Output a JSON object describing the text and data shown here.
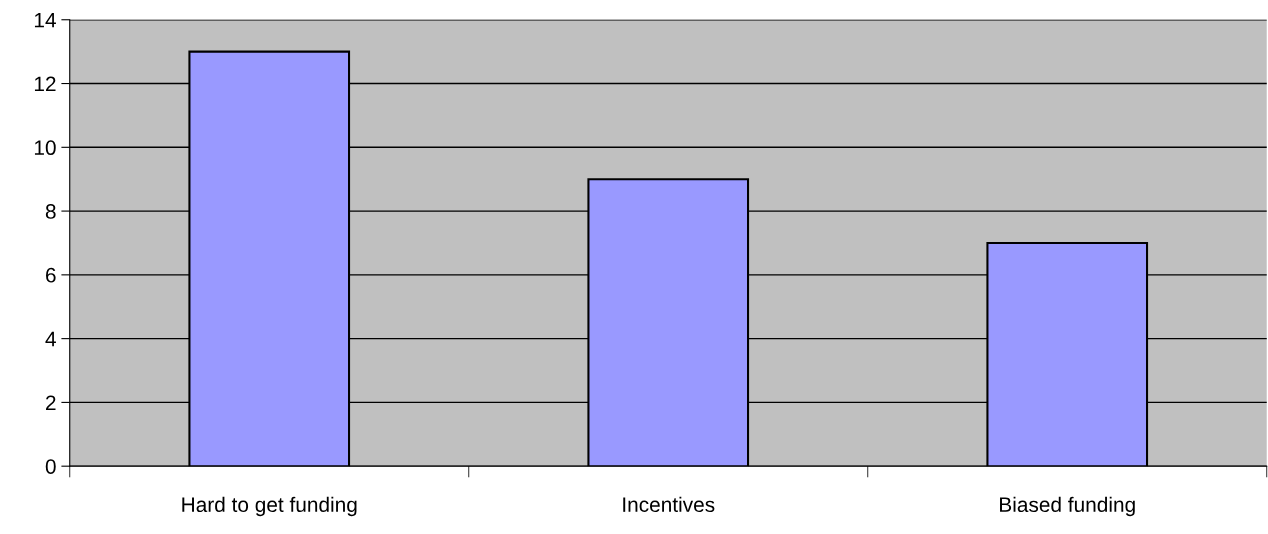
{
  "chart_data": {
    "type": "bar",
    "categories": [
      "Hard to get funding",
      "Incentives",
      "Biased funding"
    ],
    "values": [
      13,
      9,
      7
    ],
    "color": "#9999ff",
    "ylim": [
      0,
      14
    ],
    "yticks": [
      0,
      2,
      4,
      6,
      8,
      10,
      12,
      14
    ],
    "grid": "y",
    "legend": false
  }
}
